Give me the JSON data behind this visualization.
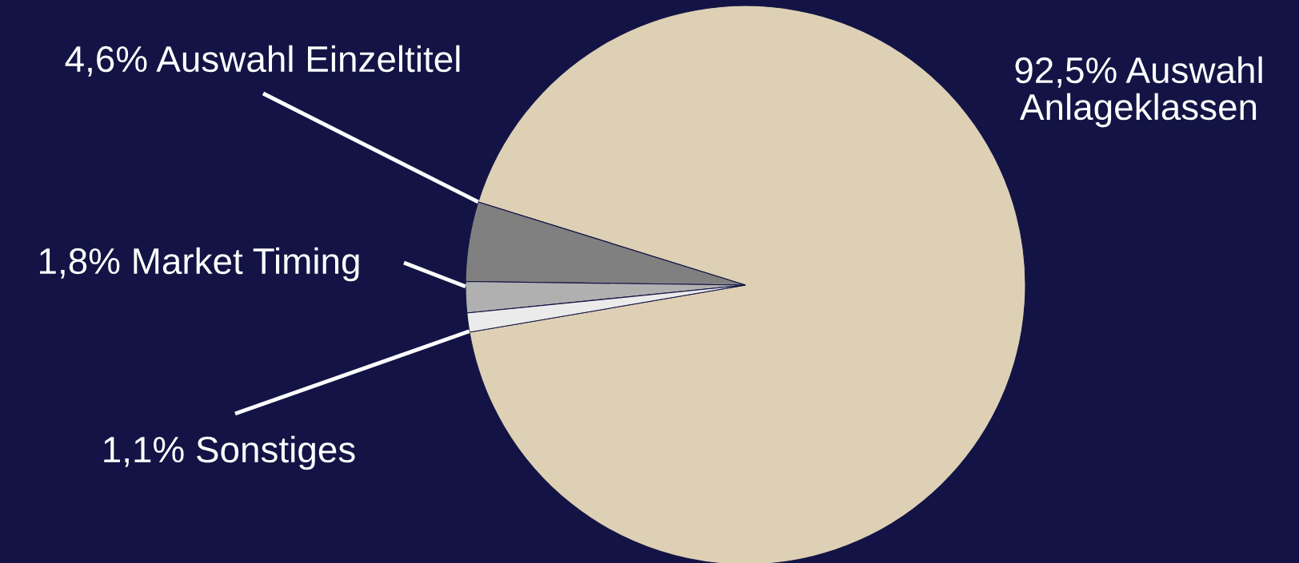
{
  "chart_data": {
    "type": "pie",
    "categories": [
      "Auswahl\nAnlageklassen",
      "Auswahl Einzeltitel",
      "Market Timing",
      "Sonstiges"
    ],
    "values": [
      92.5,
      4.6,
      1.8,
      1.1
    ],
    "value_labels": [
      "92,5%",
      "4,6%",
      "1,8%",
      "1,1%"
    ],
    "colors": [
      "#ddd0b5",
      "#808080",
      "#b0b0b0",
      "#ebebeb"
    ]
  }
}
